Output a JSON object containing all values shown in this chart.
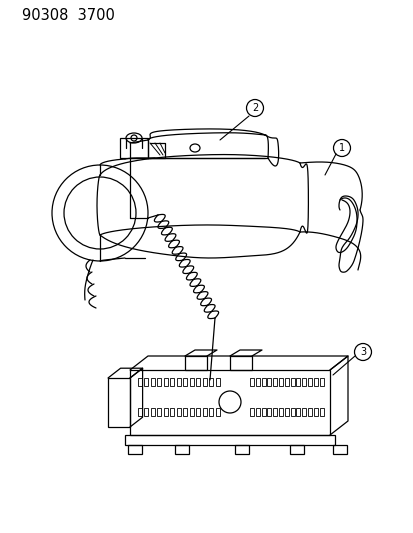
{
  "title_text": "90308  3700",
  "bg_color": "#ffffff",
  "line_color": "#000000",
  "gray_color": "#888888",
  "label1": "1",
  "label2": "2",
  "label3": "3",
  "fig_width": 4.14,
  "fig_height": 5.33,
  "dpi": 100
}
